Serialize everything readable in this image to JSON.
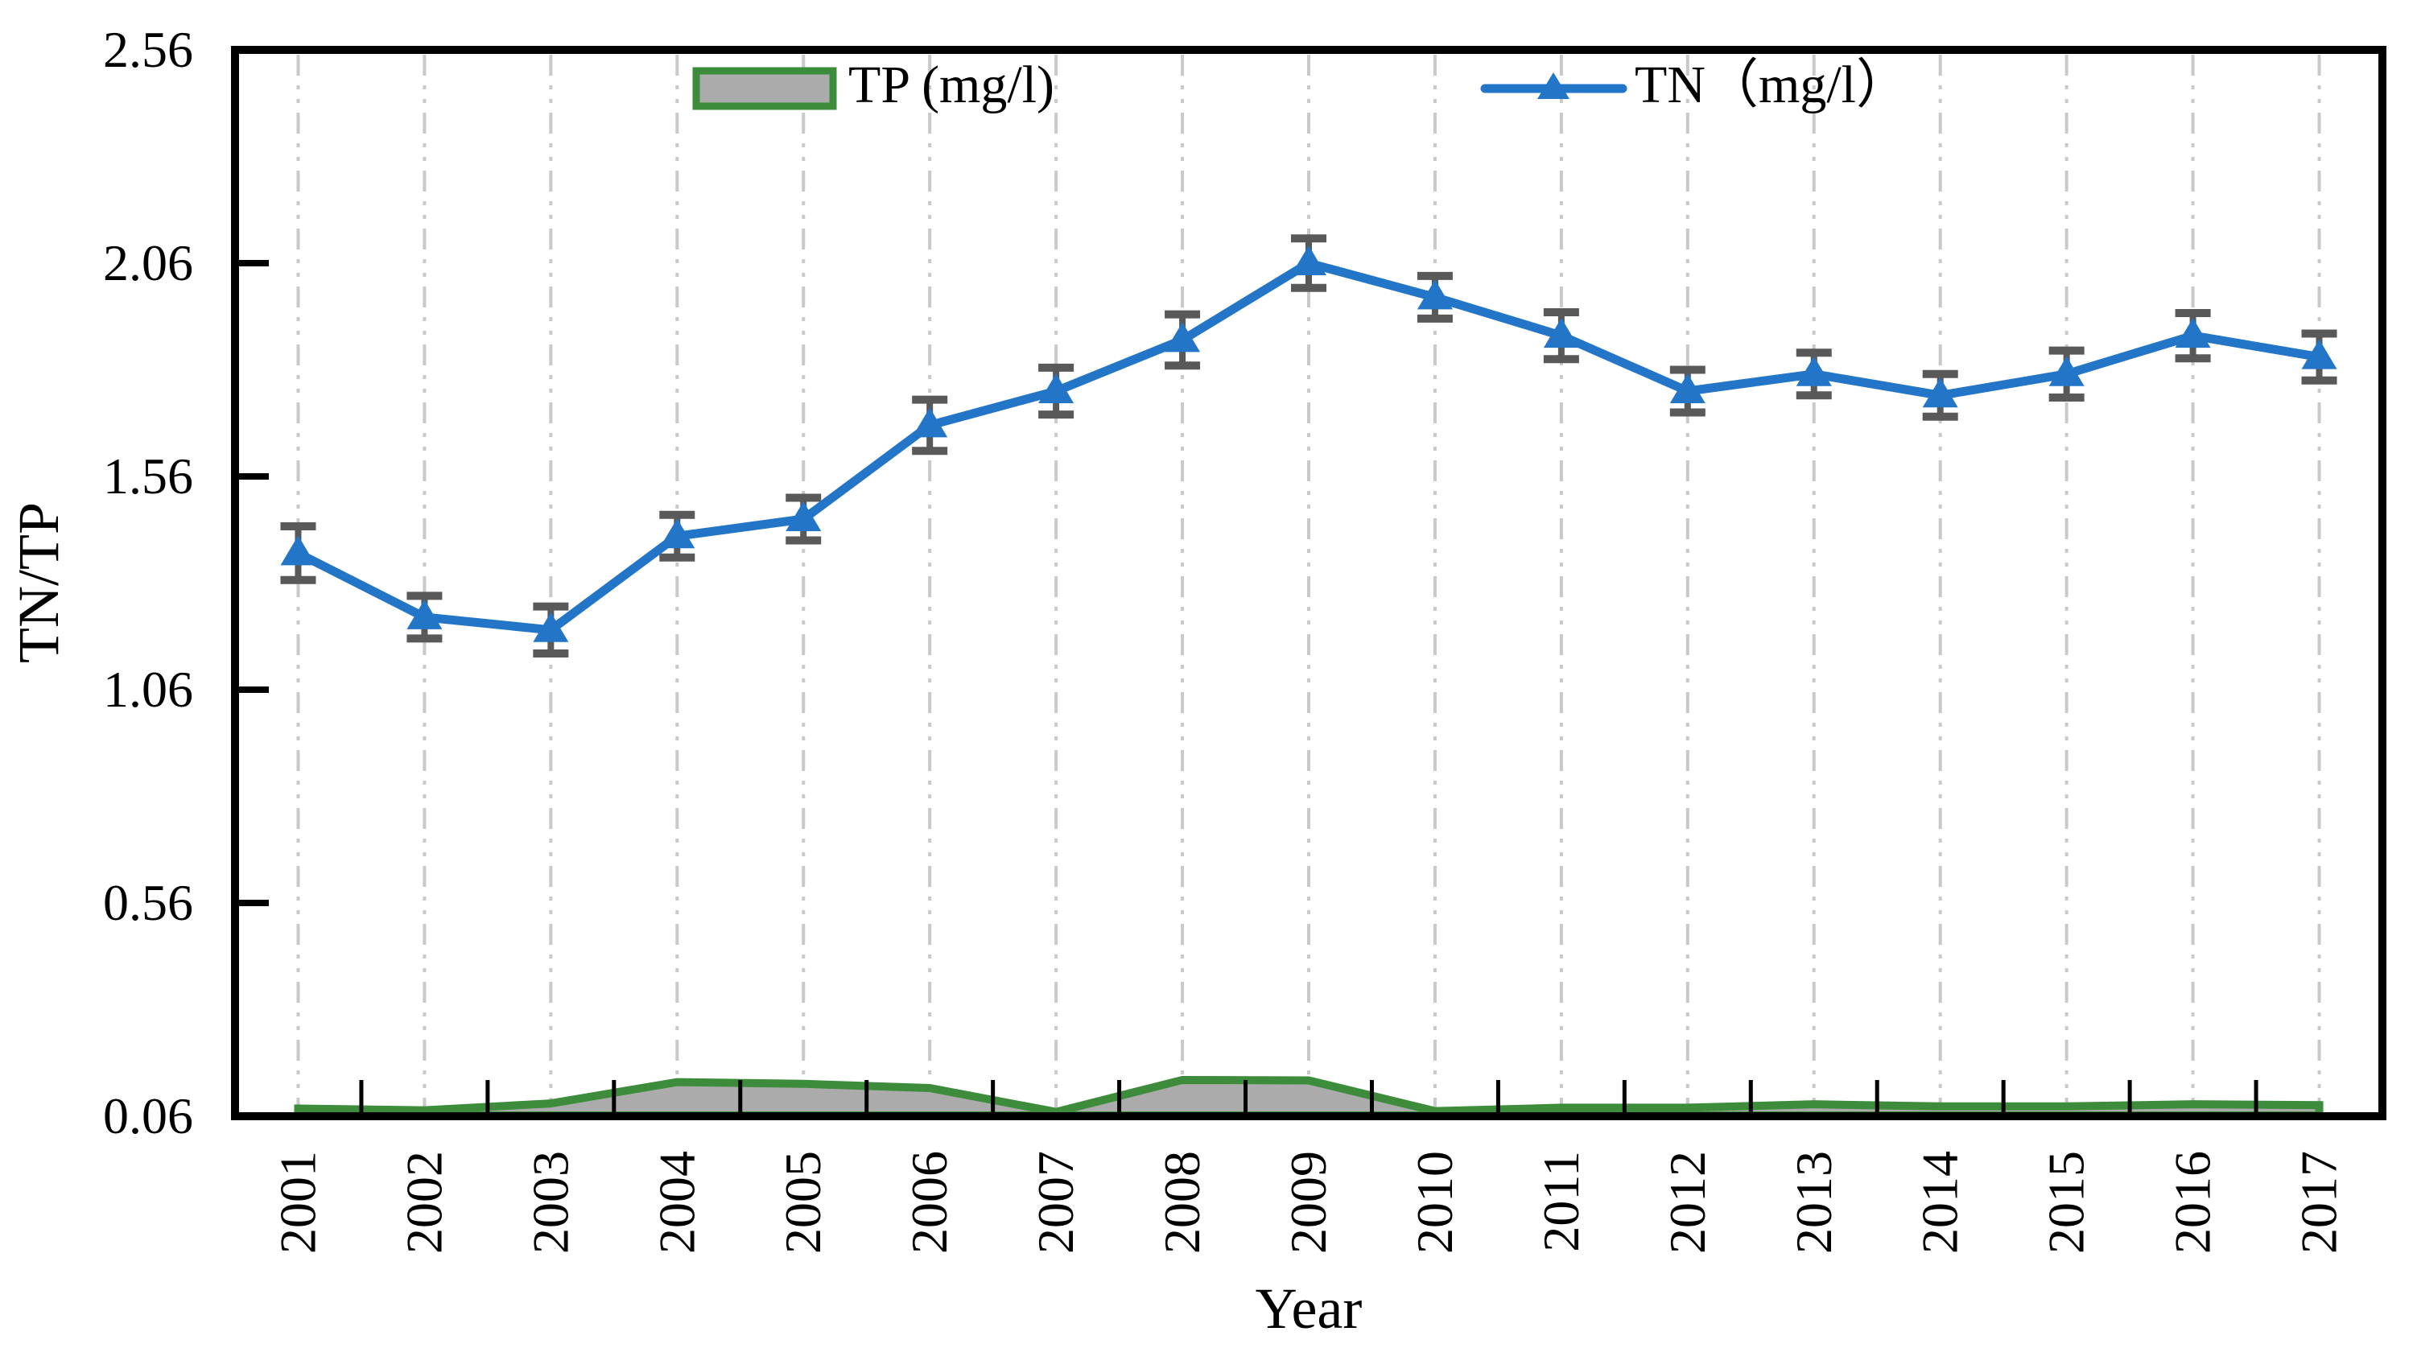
{
  "figure": {
    "xlabel": "Year",
    "ylabel": "TN/TP",
    "background": "#FFFFFF"
  },
  "chart_data": {
    "type": "line",
    "title": "",
    "xlabel": "Year",
    "ylabel": "TN/TP",
    "categories": [
      "2001",
      "2002",
      "2003",
      "2004",
      "2005",
      "2006",
      "2007",
      "2008",
      "2009",
      "2010",
      "2011",
      "2012",
      "2013",
      "2014",
      "2015",
      "2016",
      "2017"
    ],
    "ylim": [
      0.06,
      2.56
    ],
    "yticks": [
      0.06,
      0.56,
      1.06,
      1.56,
      2.06,
      2.56
    ],
    "ytick_labels": [
      "0.06",
      "0.56",
      "1.06",
      "1.56",
      "2.06",
      "2.56"
    ],
    "grid": "vertical-dash-dot",
    "legend_position": "top-inside",
    "colors": {
      "grid": "#C9C9C9",
      "axis": "#000000",
      "error_bar": "#595959"
    },
    "series": [
      {
        "name": "TP (mg/l)",
        "type": "area",
        "fill_color": "#ABABAB",
        "line_color": "#3C8C3C",
        "values": [
          0.078,
          0.074,
          0.09,
          0.14,
          0.136,
          0.126,
          0.07,
          0.145,
          0.144,
          0.072,
          0.08,
          0.08,
          0.088,
          0.083,
          0.083,
          0.088,
          0.086
        ]
      },
      {
        "name": "TN（mg/l）",
        "type": "line",
        "marker": "triangle-up",
        "line_color": "#2375C8",
        "values": [
          1.38,
          1.23,
          1.2,
          1.42,
          1.46,
          1.68,
          1.76,
          1.88,
          2.06,
          1.98,
          1.89,
          1.76,
          1.8,
          1.75,
          1.8,
          1.89,
          1.84
        ],
        "errors": [
          0.063,
          0.05,
          0.055,
          0.05,
          0.05,
          0.06,
          0.055,
          0.06,
          0.058,
          0.05,
          0.055,
          0.05,
          0.05,
          0.05,
          0.055,
          0.053,
          0.055
        ]
      }
    ]
  }
}
